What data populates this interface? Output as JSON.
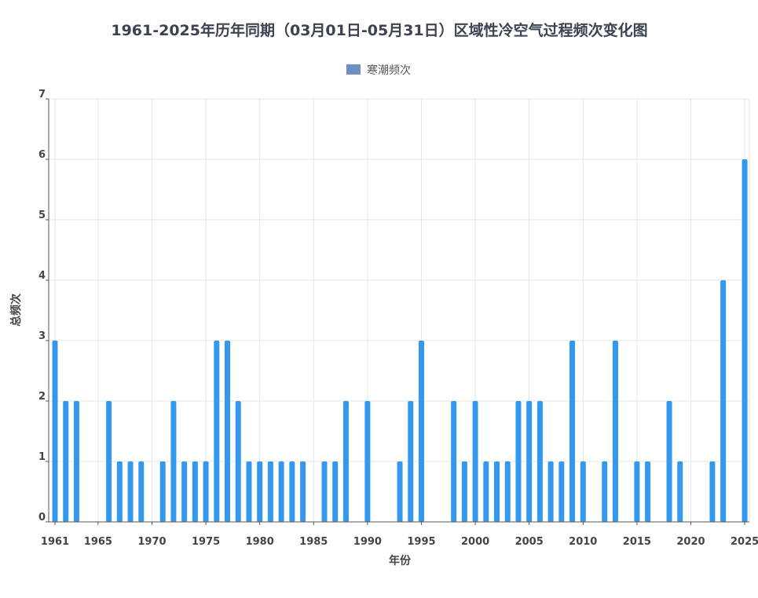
{
  "chart_data": {
    "type": "bar",
    "title": "1961-2025年历年同期（03月01日-05月31日）区域性冷空气过程频次变化图",
    "xlabel": "年份",
    "ylabel": "总频次",
    "ylim": [
      0,
      7
    ],
    "yticks": [
      "0",
      "1",
      "2",
      "3",
      "4",
      "5",
      "6",
      "7"
    ],
    "xtick_years": [
      1961,
      1965,
      1970,
      1975,
      1980,
      1985,
      1990,
      1995,
      2000,
      2005,
      2010,
      2015,
      2020,
      2025
    ],
    "legend_position": "top-center",
    "grid": true,
    "colors": {
      "bar": "#3399ee",
      "legend_swatch": "#6d8fc4"
    },
    "categories": [
      1961,
      1962,
      1963,
      1964,
      1965,
      1966,
      1967,
      1968,
      1969,
      1970,
      1971,
      1972,
      1973,
      1974,
      1975,
      1976,
      1977,
      1978,
      1979,
      1980,
      1981,
      1982,
      1983,
      1984,
      1985,
      1986,
      1987,
      1988,
      1989,
      1990,
      1991,
      1992,
      1993,
      1994,
      1995,
      1996,
      1997,
      1998,
      1999,
      2000,
      2001,
      2002,
      2003,
      2004,
      2005,
      2006,
      2007,
      2008,
      2009,
      2010,
      2011,
      2012,
      2013,
      2014,
      2015,
      2016,
      2017,
      2018,
      2019,
      2020,
      2021,
      2022,
      2023,
      2024,
      2025
    ],
    "series": [
      {
        "name": "寒潮频次",
        "values": [
          3,
          2,
          2,
          0,
          0,
          2,
          1,
          1,
          1,
          0,
          1,
          2,
          1,
          1,
          1,
          3,
          3,
          2,
          1,
          1,
          1,
          1,
          1,
          1,
          0,
          1,
          1,
          2,
          0,
          2,
          0,
          0,
          1,
          2,
          3,
          0,
          0,
          2,
          1,
          2,
          1,
          1,
          1,
          2,
          2,
          2,
          1,
          1,
          3,
          1,
          0,
          1,
          3,
          0,
          1,
          1,
          0,
          2,
          1,
          0,
          0,
          1,
          4,
          0,
          6
        ]
      }
    ]
  }
}
